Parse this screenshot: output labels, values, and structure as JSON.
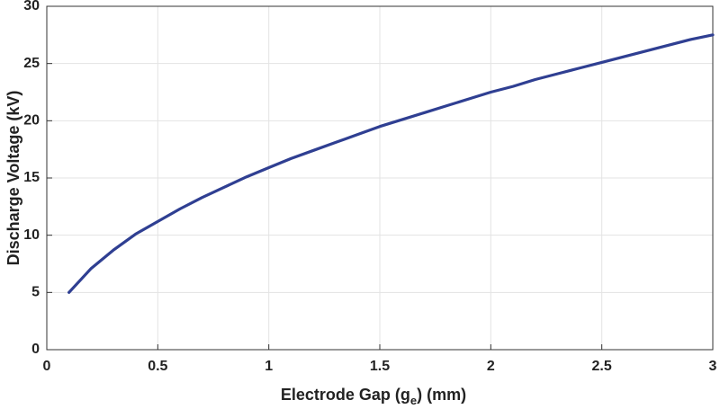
{
  "chart_data": {
    "type": "line",
    "xlabel": [
      "Electrode Gap (g",
      "e",
      ") (mm)"
    ],
    "ylabel": "Discharge Voltage (kV)",
    "x": [
      0.1,
      0.2,
      0.3,
      0.4,
      0.5,
      0.6,
      0.7,
      0.8,
      0.9,
      1.0,
      1.1,
      1.2,
      1.3,
      1.4,
      1.5,
      1.6,
      1.7,
      1.8,
      1.9,
      2.0,
      2.1,
      2.2,
      2.3,
      2.4,
      2.5,
      2.6,
      2.7,
      2.8,
      2.9,
      3.0
    ],
    "series": [
      {
        "color": "#2f3f92",
        "values": [
          5.0,
          7.1,
          8.7,
          10.1,
          11.2,
          12.3,
          13.3,
          14.2,
          15.1,
          15.9,
          16.7,
          17.4,
          18.1,
          18.8,
          19.5,
          20.1,
          20.7,
          21.3,
          21.9,
          22.5,
          23.0,
          23.6,
          24.1,
          24.6,
          25.1,
          25.6,
          26.1,
          26.6,
          27.1,
          27.5
        ]
      }
    ],
    "xlim": [
      0,
      3
    ],
    "xticks": [
      0,
      0.5,
      1,
      1.5,
      2,
      2.5,
      3
    ],
    "ylim": [
      0,
      30
    ],
    "yticks": [
      0,
      5,
      10,
      15,
      20,
      25,
      30
    ],
    "grid": true
  }
}
